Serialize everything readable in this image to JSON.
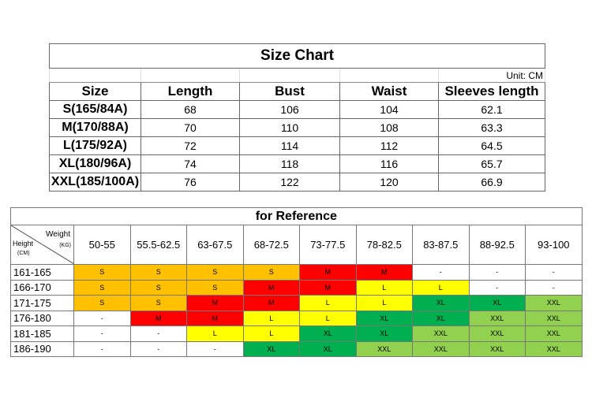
{
  "size_chart": {
    "title": "Size Chart",
    "unit": "Unit: CM",
    "headers": [
      "Size",
      "Length",
      "Bust",
      "Waist",
      "Sleeves length"
    ],
    "rows": [
      [
        "S(165/84A)",
        "68",
        "106",
        "104",
        "62.1"
      ],
      [
        "M(170/88A)",
        "70",
        "110",
        "108",
        "63.3"
      ],
      [
        "L(175/92A)",
        "72",
        "114",
        "112",
        "64.5"
      ],
      [
        "XL(180/96A)",
        "74",
        "118",
        "116",
        "65.7"
      ],
      [
        "XXL(185/100A)",
        "76",
        "122",
        "120",
        "66.9"
      ]
    ]
  },
  "reference": {
    "title": "for Reference",
    "corner": {
      "weight": "Weight",
      "kg": "(KG)",
      "height": "Height",
      "cm": "(CM)"
    },
    "weights": [
      "50-55",
      "55.5-62.5",
      "63-67.5",
      "68-72.5",
      "73-77.5",
      "78-82.5",
      "83-87.5",
      "88-92.5",
      "93-100"
    ],
    "rows": [
      {
        "height": "161-165",
        "sizes": [
          "S",
          "S",
          "S",
          "S",
          "M",
          "M",
          "-",
          "-",
          "-"
        ]
      },
      {
        "height": "166-170",
        "sizes": [
          "S",
          "S",
          "S",
          "M",
          "M",
          "L",
          "L",
          "-",
          "-"
        ]
      },
      {
        "height": "171-175",
        "sizes": [
          "S",
          "S",
          "M",
          "M",
          "L",
          "L",
          "XL",
          "XL",
          "XXL"
        ]
      },
      {
        "height": "176-180",
        "sizes": [
          "-",
          "M",
          "M",
          "L",
          "L",
          "XL",
          "XL",
          "XXL",
          "XXL"
        ]
      },
      {
        "height": "181-185",
        "sizes": [
          "-",
          "-",
          "L",
          "L",
          "XL",
          "XL",
          "XXL",
          "XXL",
          "XXL"
        ]
      },
      {
        "height": "186-190",
        "sizes": [
          "-",
          "-",
          "-",
          "XL",
          "XL",
          "XXL",
          "XXL",
          "XXL",
          "XXL"
        ]
      }
    ],
    "colors": {
      "S": "#FFC000",
      "M": "#FF0000",
      "L": "#FFFF00",
      "XL": "#00B050",
      "XXL": "#92D050",
      "-": "#FFFFFF"
    }
  }
}
